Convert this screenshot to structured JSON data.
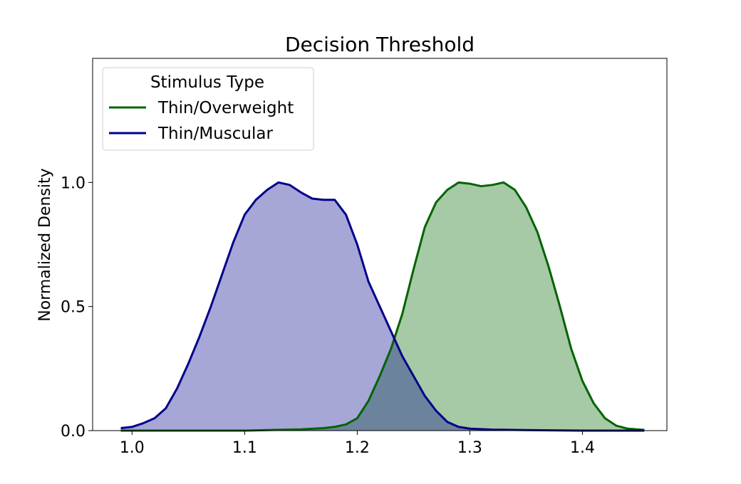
{
  "chart_data": {
    "type": "area",
    "title": "Decision Threshold",
    "xlabel": "",
    "ylabel": "Normalized Density",
    "xlim": [
      0.965,
      1.475
    ],
    "ylim": [
      0.0,
      1.5
    ],
    "xticks": [
      1.0,
      1.1,
      1.2,
      1.3,
      1.4
    ],
    "xtick_labels": [
      "1.0",
      "1.1",
      "1.2",
      "1.3",
      "1.4"
    ],
    "yticks": [
      0.0,
      0.5,
      1.0
    ],
    "ytick_labels": [
      "0.0",
      "0.5",
      "1.0"
    ],
    "grid": false,
    "legend": {
      "title": "Stimulus Type",
      "placement": "top-left"
    },
    "series": [
      {
        "name": "Thin/Overweight",
        "color": "#006400",
        "fill_color": "#a8c8a8",
        "x": [
          0.99,
          1.05,
          1.1,
          1.15,
          1.17,
          1.18,
          1.19,
          1.2,
          1.21,
          1.22,
          1.23,
          1.24,
          1.25,
          1.26,
          1.27,
          1.28,
          1.29,
          1.3,
          1.31,
          1.32,
          1.33,
          1.34,
          1.35,
          1.36,
          1.37,
          1.38,
          1.39,
          1.4,
          1.41,
          1.42,
          1.43,
          1.44,
          1.455
        ],
        "values": [
          0.0,
          0.0,
          0.0,
          0.005,
          0.01,
          0.015,
          0.025,
          0.05,
          0.12,
          0.22,
          0.33,
          0.47,
          0.65,
          0.82,
          0.92,
          0.97,
          1.0,
          0.995,
          0.985,
          0.99,
          1.0,
          0.97,
          0.9,
          0.8,
          0.66,
          0.5,
          0.33,
          0.2,
          0.11,
          0.05,
          0.02,
          0.008,
          0.003
        ]
      },
      {
        "name": "Thin/Muscular",
        "color": "#00008b",
        "fill_color": "#a4a6d6",
        "x": [
          0.99,
          1.0,
          1.01,
          1.02,
          1.03,
          1.04,
          1.05,
          1.06,
          1.07,
          1.08,
          1.09,
          1.1,
          1.11,
          1.12,
          1.13,
          1.14,
          1.15,
          1.16,
          1.17,
          1.18,
          1.19,
          1.2,
          1.21,
          1.22,
          1.23,
          1.24,
          1.25,
          1.26,
          1.27,
          1.28,
          1.29,
          1.3,
          1.32,
          1.35,
          1.4,
          1.455
        ],
        "values": [
          0.01,
          0.015,
          0.03,
          0.05,
          0.09,
          0.17,
          0.27,
          0.38,
          0.5,
          0.63,
          0.76,
          0.87,
          0.93,
          0.97,
          1.0,
          0.99,
          0.96,
          0.935,
          0.93,
          0.93,
          0.87,
          0.75,
          0.6,
          0.5,
          0.4,
          0.3,
          0.22,
          0.14,
          0.08,
          0.035,
          0.015,
          0.008,
          0.004,
          0.002,
          0.0,
          0.0
        ]
      }
    ]
  }
}
